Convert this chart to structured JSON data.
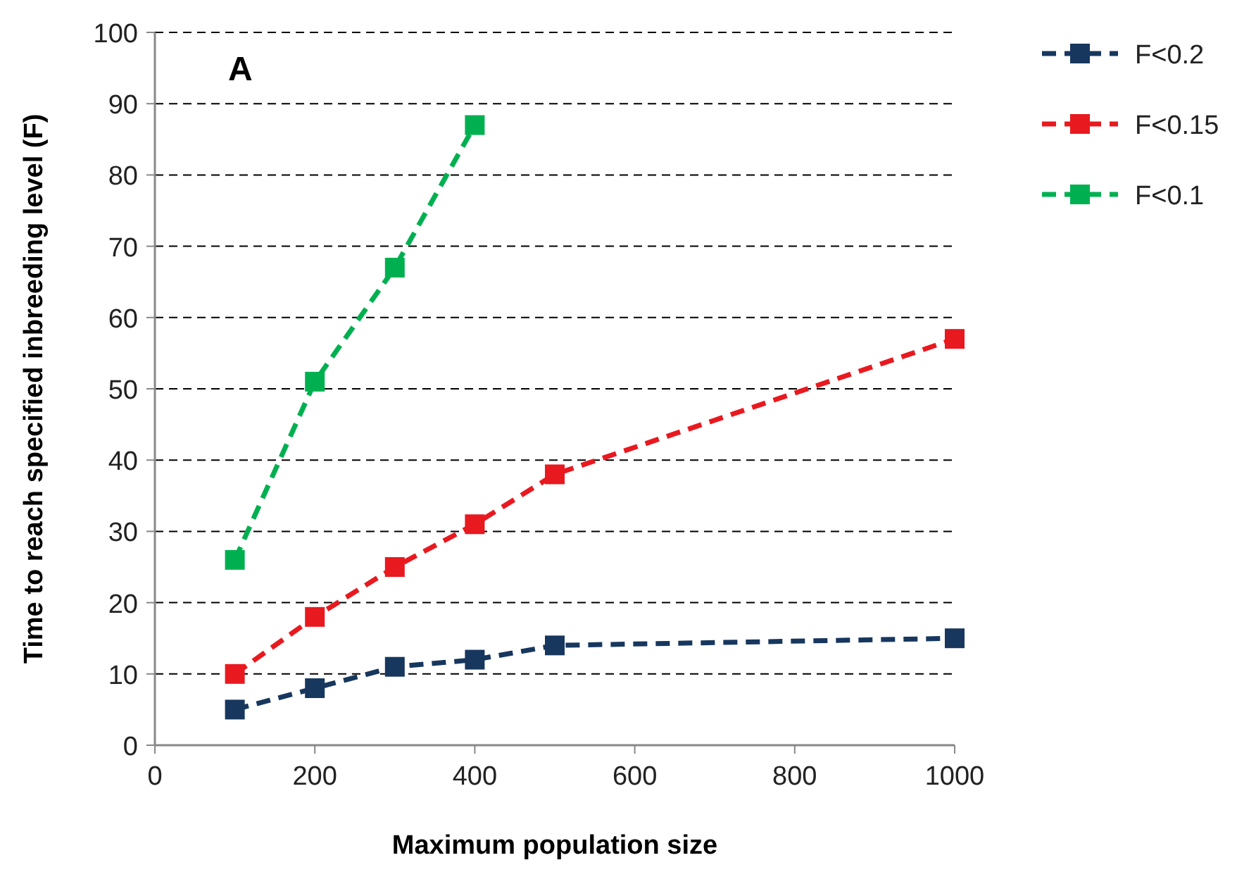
{
  "chart_data": {
    "type": "line",
    "xlabel": "Maximum population size",
    "ylabel": "Time to reach specified inbreeding level (F)",
    "annotations": [
      "A"
    ],
    "xlim": [
      0,
      1000
    ],
    "xticks": [
      0,
      200,
      400,
      600,
      800,
      1000
    ],
    "ylim": [
      0,
      100
    ],
    "yticks": [
      0,
      10,
      20,
      30,
      40,
      50,
      60,
      70,
      80,
      90,
      100
    ],
    "grid": "y",
    "legend": "right",
    "marker": "square",
    "line_style": "dashed",
    "series": [
      {
        "name": "F<0.2",
        "color": "#17375e",
        "x": [
          100,
          200,
          300,
          400,
          500,
          1000
        ],
        "values": [
          5,
          8,
          11,
          12,
          14,
          15
        ]
      },
      {
        "name": "F<0.15",
        "color": "#e8191f",
        "x": [
          100,
          200,
          300,
          400,
          500,
          1000
        ],
        "values": [
          10,
          18,
          25,
          31,
          38,
          57
        ]
      },
      {
        "name": "F<0.1",
        "color": "#00b050",
        "x": [
          100,
          200,
          300,
          400
        ],
        "values": [
          26,
          51,
          67,
          87
        ]
      }
    ]
  }
}
